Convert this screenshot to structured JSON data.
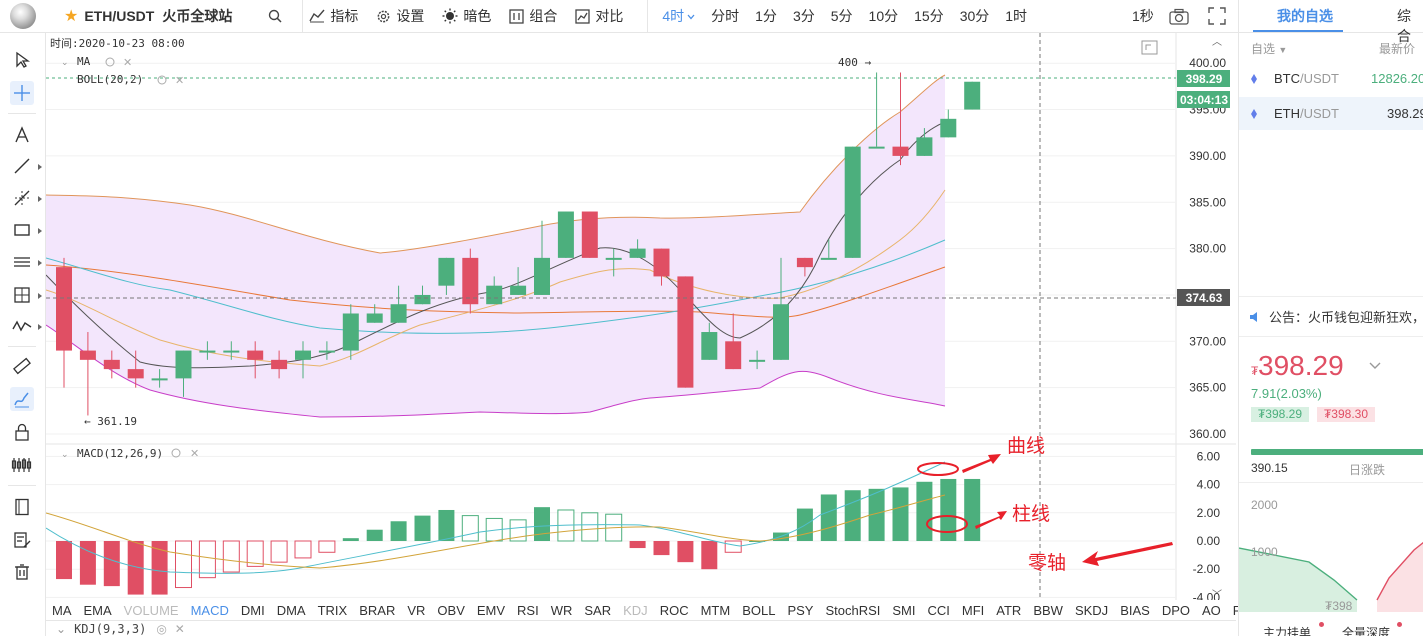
{
  "header": {
    "pair": "ETH/USDT",
    "exchange": "火币全球站",
    "tools": [
      "指标",
      "设置",
      "暗色",
      "组合",
      "对比"
    ],
    "periods": [
      "4时",
      "分时",
      "1分",
      "3分",
      "5分",
      "10分",
      "15分",
      "30分",
      "1时"
    ],
    "active_period": "4时",
    "refresh": "1秒"
  },
  "chart": {
    "time_label": "时间:2020-10-23 08:00",
    "ma_label": "MA",
    "boll_label": "BOLL(20,2)",
    "macd_label": "MACD(12,26,9)",
    "kdj_label": "KDJ(9,3,3)",
    "price_axis": [
      "400.00",
      "395.00",
      "390.00",
      "385.00",
      "380.00",
      "375.00",
      "370.00",
      "365.00",
      "360.00"
    ],
    "macd_axis": [
      "6.00",
      "4.00",
      "2.00",
      "0.00",
      "-2.00",
      "-4.00"
    ],
    "last_price_tag": "398.29",
    "countdown_tag": "03:04:13",
    "crosshair_price_tag": "374.63",
    "high_marker": "400 →",
    "low_marker": "← 361.19",
    "colors": {
      "up": "#4caf7d",
      "down": "#e04f64",
      "boll_fill": "#f3e6fc",
      "ma_dark": "#555555",
      "ma_orange": "#e8b46a",
      "ma_cyan": "#4fbecc"
    }
  },
  "annotations": {
    "curve": "曲线",
    "bar": "柱线",
    "zero_axis": "零轴"
  },
  "indicators": [
    "MA",
    "EMA",
    "VOLUME",
    "MACD",
    "DMI",
    "DMA",
    "TRIX",
    "BRAR",
    "VR",
    "OBV",
    "EMV",
    "RSI",
    "WR",
    "SAR",
    "KDJ",
    "ROC",
    "MTM",
    "BOLL",
    "PSY",
    "StochRSI",
    "SMI",
    "CCI",
    "MFI",
    "ATR",
    "BBW",
    "SKDJ",
    "BIAS",
    "DPO",
    "AO",
    "Position"
  ],
  "active_indicator": "MACD",
  "dim_indicators": [
    "VOLUME",
    "KDJ"
  ],
  "right_panel": {
    "tabs": [
      "我的自选",
      "综合"
    ],
    "subheader_left": "自选",
    "subheader_right": "最新价",
    "coins": [
      {
        "base": "BTC",
        "quote": "/USDT",
        "price": "12826.20"
      },
      {
        "base": "ETH",
        "quote": "/USDT",
        "price": "398.29"
      }
    ],
    "notice": "公告：火币钱包迎新狂欢，",
    "price_symbol": "₮",
    "price": "398.29",
    "change": "7.91(2.03%)",
    "bid": "₮398.29",
    "ask": "₮398.30",
    "low_value": "390.15",
    "range_label": "日涨跌",
    "depth_axis": [
      "2000",
      "1000"
    ],
    "depth_price": "₮398",
    "bottom_tabs": [
      "主力挂单",
      "全量深度"
    ]
  }
}
